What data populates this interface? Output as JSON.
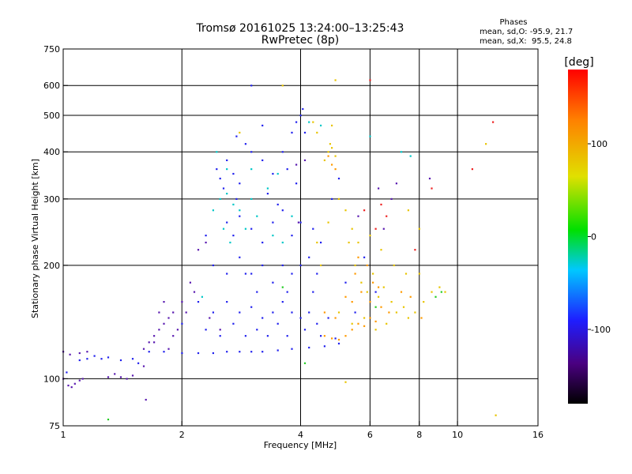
{
  "chart_data": {
    "type": "scatter",
    "title": "Tromsø 20161025 13:24:00–13:25:43",
    "subtitle": "RwPretec (8p)",
    "xlabel": "Frequency [MHz]",
    "ylabel": "Stationary phase Virtual Height [km]",
    "xscale": "log",
    "yscale": "log",
    "xlim": [
      1,
      16
    ],
    "ylim": [
      75,
      750
    ],
    "xticks": [
      "1",
      "2",
      "4",
      "6",
      "8",
      "10",
      "16"
    ],
    "xtick_values": [
      1,
      2,
      4,
      6,
      8,
      10,
      16
    ],
    "xgrid_values": [
      2,
      4,
      6,
      8,
      10
    ],
    "yticks": [
      "75",
      "100",
      "200",
      "300",
      "400",
      "500",
      "600",
      "750"
    ],
    "ytick_values": [
      75,
      100,
      200,
      300,
      400,
      500,
      600,
      750
    ],
    "ygrid_values": [
      100,
      200,
      300,
      400,
      500,
      600
    ],
    "grid": true,
    "phase_stats": {
      "heading": "Phases",
      "line_o": "mean, sd,O: -95.9, 21.7",
      "line_x": "mean, sd,X:  95.5, 24.8"
    },
    "colorbar": {
      "label": "[deg]",
      "range": [
        -180,
        180
      ],
      "ticks": [
        "100",
        "0",
        "-100"
      ],
      "tick_values": [
        100,
        0,
        -100
      ]
    },
    "series": [
      {
        "phase": -100,
        "color": "#2222ee",
        "points": [
          [
            1.02,
            104
          ],
          [
            1.1,
            112
          ],
          [
            1.15,
            113
          ],
          [
            1.2,
            115
          ],
          [
            1.25,
            113
          ],
          [
            1.3,
            114
          ],
          [
            1.4,
            112
          ],
          [
            1.5,
            113
          ],
          [
            1.55,
            110
          ],
          [
            1.65,
            118
          ],
          [
            1.8,
            118
          ],
          [
            2.0,
            117
          ],
          [
            2.2,
            117
          ],
          [
            2.4,
            117
          ],
          [
            2.6,
            118
          ],
          [
            2.8,
            118
          ],
          [
            3.0,
            118
          ],
          [
            3.2,
            118
          ],
          [
            3.5,
            119
          ],
          [
            3.8,
            120
          ],
          [
            4.2,
            121
          ],
          [
            4.6,
            122
          ],
          [
            5.0,
            124
          ],
          [
            2.45,
            360
          ],
          [
            2.5,
            340
          ],
          [
            2.55,
            320
          ],
          [
            2.6,
            380
          ],
          [
            2.7,
            350
          ],
          [
            2.75,
            300
          ],
          [
            2.8,
            330
          ],
          [
            2.9,
            420
          ],
          [
            3.0,
            400
          ],
          [
            3.2,
            380
          ],
          [
            3.4,
            350
          ],
          [
            3.6,
            400
          ],
          [
            3.8,
            450
          ],
          [
            3.9,
            480
          ],
          [
            4.0,
            500
          ],
          [
            4.05,
            520
          ],
          [
            4.1,
            450
          ],
          [
            2.6,
            260
          ],
          [
            2.7,
            240
          ],
          [
            2.8,
            270
          ],
          [
            3.0,
            250
          ],
          [
            3.2,
            230
          ],
          [
            3.4,
            260
          ],
          [
            3.6,
            280
          ],
          [
            3.8,
            240
          ],
          [
            4.0,
            260
          ],
          [
            4.3,
            250
          ],
          [
            2.4,
            200
          ],
          [
            2.6,
            190
          ],
          [
            2.8,
            210
          ],
          [
            3.0,
            190
          ],
          [
            3.2,
            200
          ],
          [
            3.4,
            180
          ],
          [
            3.6,
            200
          ],
          [
            3.8,
            190
          ],
          [
            4.0,
            200
          ],
          [
            4.2,
            210
          ],
          [
            4.4,
            190
          ],
          [
            2.2,
            160
          ],
          [
            2.4,
            150
          ],
          [
            2.6,
            160
          ],
          [
            2.8,
            150
          ],
          [
            3.0,
            155
          ],
          [
            3.2,
            145
          ],
          [
            3.4,
            150
          ],
          [
            3.6,
            160
          ],
          [
            3.8,
            150
          ],
          [
            4.0,
            145
          ],
          [
            4.2,
            150
          ],
          [
            4.4,
            140
          ],
          [
            4.7,
            145
          ],
          [
            2.0,
            140
          ],
          [
            2.3,
            135
          ],
          [
            2.5,
            130
          ],
          [
            2.7,
            140
          ],
          [
            2.9,
            130
          ],
          [
            3.1,
            135
          ],
          [
            3.3,
            130
          ],
          [
            3.5,
            140
          ],
          [
            3.7,
            130
          ],
          [
            4.1,
            135
          ],
          [
            4.5,
            130
          ],
          [
            4.9,
            128
          ],
          [
            5.2,
            180
          ],
          [
            5.5,
            150
          ],
          [
            5.8,
            210
          ],
          [
            6.2,
            170
          ],
          [
            3.5,
            290
          ],
          [
            3.3,
            310
          ],
          [
            4.5,
            230
          ],
          [
            4.8,
            300
          ],
          [
            5.0,
            340
          ],
          [
            3.0,
            600
          ],
          [
            3.2,
            470
          ],
          [
            2.75,
            440
          ],
          [
            2.3,
            240
          ],
          [
            2.9,
            190
          ],
          [
            3.1,
            170
          ],
          [
            3.7,
            170
          ],
          [
            4.3,
            170
          ],
          [
            3.9,
            330
          ],
          [
            3.7,
            360
          ]
        ]
      },
      {
        "phase": -130,
        "color": "#5a1ab0",
        "points": [
          [
            1.0,
            100
          ],
          [
            1.03,
            96
          ],
          [
            1.05,
            95
          ],
          [
            1.07,
            97
          ],
          [
            1.1,
            99
          ],
          [
            1.12,
            100
          ],
          [
            1.0,
            118
          ],
          [
            1.04,
            116
          ],
          [
            1.1,
            117
          ],
          [
            1.15,
            118
          ],
          [
            1.4,
            101
          ],
          [
            1.45,
            100
          ],
          [
            1.5,
            102
          ],
          [
            1.6,
            108
          ],
          [
            1.65,
            125
          ],
          [
            1.7,
            130
          ],
          [
            1.75,
            135
          ],
          [
            1.8,
            140
          ],
          [
            1.85,
            145
          ],
          [
            1.9,
            150
          ],
          [
            1.95,
            135
          ],
          [
            1.75,
            150
          ],
          [
            1.8,
            160
          ],
          [
            1.7,
            125
          ],
          [
            1.6,
            120
          ],
          [
            2.3,
            230
          ],
          [
            2.2,
            220
          ],
          [
            2.1,
            180
          ],
          [
            2.15,
            170
          ],
          [
            2.0,
            160
          ],
          [
            2.05,
            150
          ],
          [
            1.9,
            130
          ],
          [
            1.85,
            120
          ],
          [
            6.5,
            250
          ],
          [
            6.8,
            300
          ],
          [
            7.0,
            330
          ],
          [
            6.3,
            320
          ],
          [
            8.5,
            340
          ],
          [
            4.1,
            380
          ],
          [
            3.9,
            370
          ],
          [
            3.95,
            260
          ],
          [
            5.6,
            270
          ],
          [
            2.5,
            135
          ],
          [
            2.35,
            145
          ],
          [
            1.62,
            88
          ],
          [
            1.3,
            101
          ],
          [
            1.35,
            103
          ]
        ]
      },
      {
        "phase": 60,
        "color": "#e8c400",
        "points": [
          [
            4.6,
            380
          ],
          [
            4.7,
            400
          ],
          [
            4.75,
            420
          ],
          [
            4.8,
            410
          ],
          [
            4.9,
            390
          ],
          [
            5.0,
            300
          ],
          [
            5.3,
            230
          ],
          [
            5.5,
            200
          ],
          [
            5.7,
            180
          ],
          [
            5.9,
            170
          ],
          [
            6.1,
            190
          ],
          [
            6.3,
            165
          ],
          [
            6.5,
            175
          ],
          [
            6.8,
            160
          ],
          [
            7.0,
            150
          ],
          [
            7.3,
            155
          ],
          [
            7.5,
            145
          ],
          [
            7.8,
            150
          ],
          [
            8.2,
            160
          ],
          [
            8.6,
            170
          ],
          [
            9.0,
            175
          ],
          [
            9.3,
            170
          ],
          [
            4.4,
            230
          ],
          [
            4.5,
            200
          ],
          [
            4.7,
            260
          ],
          [
            5.2,
            280
          ],
          [
            5.4,
            250
          ],
          [
            5.6,
            230
          ],
          [
            6.0,
            240
          ],
          [
            6.4,
            220
          ],
          [
            6.9,
            200
          ],
          [
            7.4,
            190
          ],
          [
            8.0,
            190
          ],
          [
            5.0,
            150
          ],
          [
            5.4,
            140
          ],
          [
            5.8,
            145
          ],
          [
            6.2,
            135
          ],
          [
            6.6,
            140
          ],
          [
            4.9,
            620
          ],
          [
            4.3,
            480
          ],
          [
            4.4,
            450
          ],
          [
            7.5,
            280
          ],
          [
            8.0,
            250
          ],
          [
            3.6,
            600
          ],
          [
            2.8,
            450
          ],
          [
            4.8,
            470
          ],
          [
            12.5,
            80
          ],
          [
            11.8,
            420
          ],
          [
            5.2,
            98
          ]
        ]
      },
      {
        "phase": 100,
        "color": "#ff9a00",
        "points": [
          [
            4.6,
            130
          ],
          [
            4.8,
            128
          ],
          [
            5.0,
            127
          ],
          [
            5.2,
            130
          ],
          [
            5.4,
            135
          ],
          [
            5.6,
            140
          ],
          [
            5.8,
            138
          ],
          [
            6.0,
            145
          ],
          [
            6.2,
            142
          ],
          [
            4.7,
            390
          ],
          [
            4.8,
            370
          ],
          [
            4.9,
            360
          ],
          [
            5.5,
            190
          ],
          [
            5.7,
            170
          ],
          [
            6.0,
            160
          ],
          [
            6.3,
            175
          ],
          [
            5.2,
            165
          ],
          [
            5.4,
            160
          ],
          [
            4.6,
            150
          ],
          [
            4.9,
            145
          ],
          [
            5.6,
            210
          ],
          [
            5.9,
            200
          ],
          [
            6.1,
            180
          ],
          [
            6.4,
            155
          ],
          [
            6.7,
            150
          ],
          [
            7.2,
            170
          ],
          [
            7.6,
            165
          ],
          [
            8.1,
            145
          ]
        ]
      },
      {
        "phase": -40,
        "color": "#00c8c8",
        "points": [
          [
            2.5,
            300
          ],
          [
            2.6,
            310
          ],
          [
            2.7,
            290
          ],
          [
            2.4,
            280
          ],
          [
            2.55,
            250
          ],
          [
            2.65,
            230
          ],
          [
            2.8,
            280
          ],
          [
            3.0,
            300
          ],
          [
            3.1,
            270
          ],
          [
            3.3,
            320
          ],
          [
            3.5,
            350
          ],
          [
            2.45,
            400
          ],
          [
            2.6,
            360
          ],
          [
            2.9,
            250
          ],
          [
            3.4,
            240
          ],
          [
            3.6,
            230
          ],
          [
            4.2,
            480
          ],
          [
            4.5,
            470
          ],
          [
            3.8,
            270
          ],
          [
            7.6,
            390
          ],
          [
            6.0,
            440
          ],
          [
            7.2,
            400
          ],
          [
            2.25,
            165
          ],
          [
            3.0,
            360
          ]
        ]
      },
      {
        "phase": 140,
        "color": "#ee2222",
        "points": [
          [
            6.4,
            290
          ],
          [
            6.6,
            270
          ],
          [
            8.6,
            320
          ],
          [
            10.9,
            360
          ],
          [
            12.3,
            480
          ],
          [
            5.8,
            280
          ],
          [
            6.2,
            250
          ],
          [
            7.8,
            220
          ],
          [
            6.0,
            620
          ]
        ]
      },
      {
        "phase": 10,
        "color": "#22cc22",
        "points": [
          [
            1.3,
            78
          ],
          [
            8.8,
            165
          ],
          [
            9.1,
            170
          ],
          [
            6.2,
            155
          ],
          [
            4.1,
            110
          ],
          [
            3.6,
            175
          ]
        ]
      }
    ]
  }
}
